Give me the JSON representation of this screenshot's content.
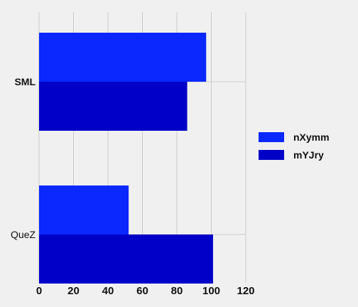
{
  "chart_data": {
    "type": "bar",
    "orientation": "horizontal",
    "categories": [
      "SML",
      "QueZ"
    ],
    "series": [
      {
        "name": "nXymm",
        "values": [
          97,
          52
        ],
        "color": "#0a28ff"
      },
      {
        "name": "mYJry",
        "values": [
          86,
          101
        ],
        "color": "#0000c8"
      }
    ],
    "xlim": [
      0,
      120
    ],
    "xticks": [
      "0",
      "20",
      "40",
      "60",
      "80",
      "100",
      "120"
    ],
    "grid": true,
    "legend_position": "right",
    "title": "",
    "xlabel": "",
    "ylabel": ""
  }
}
